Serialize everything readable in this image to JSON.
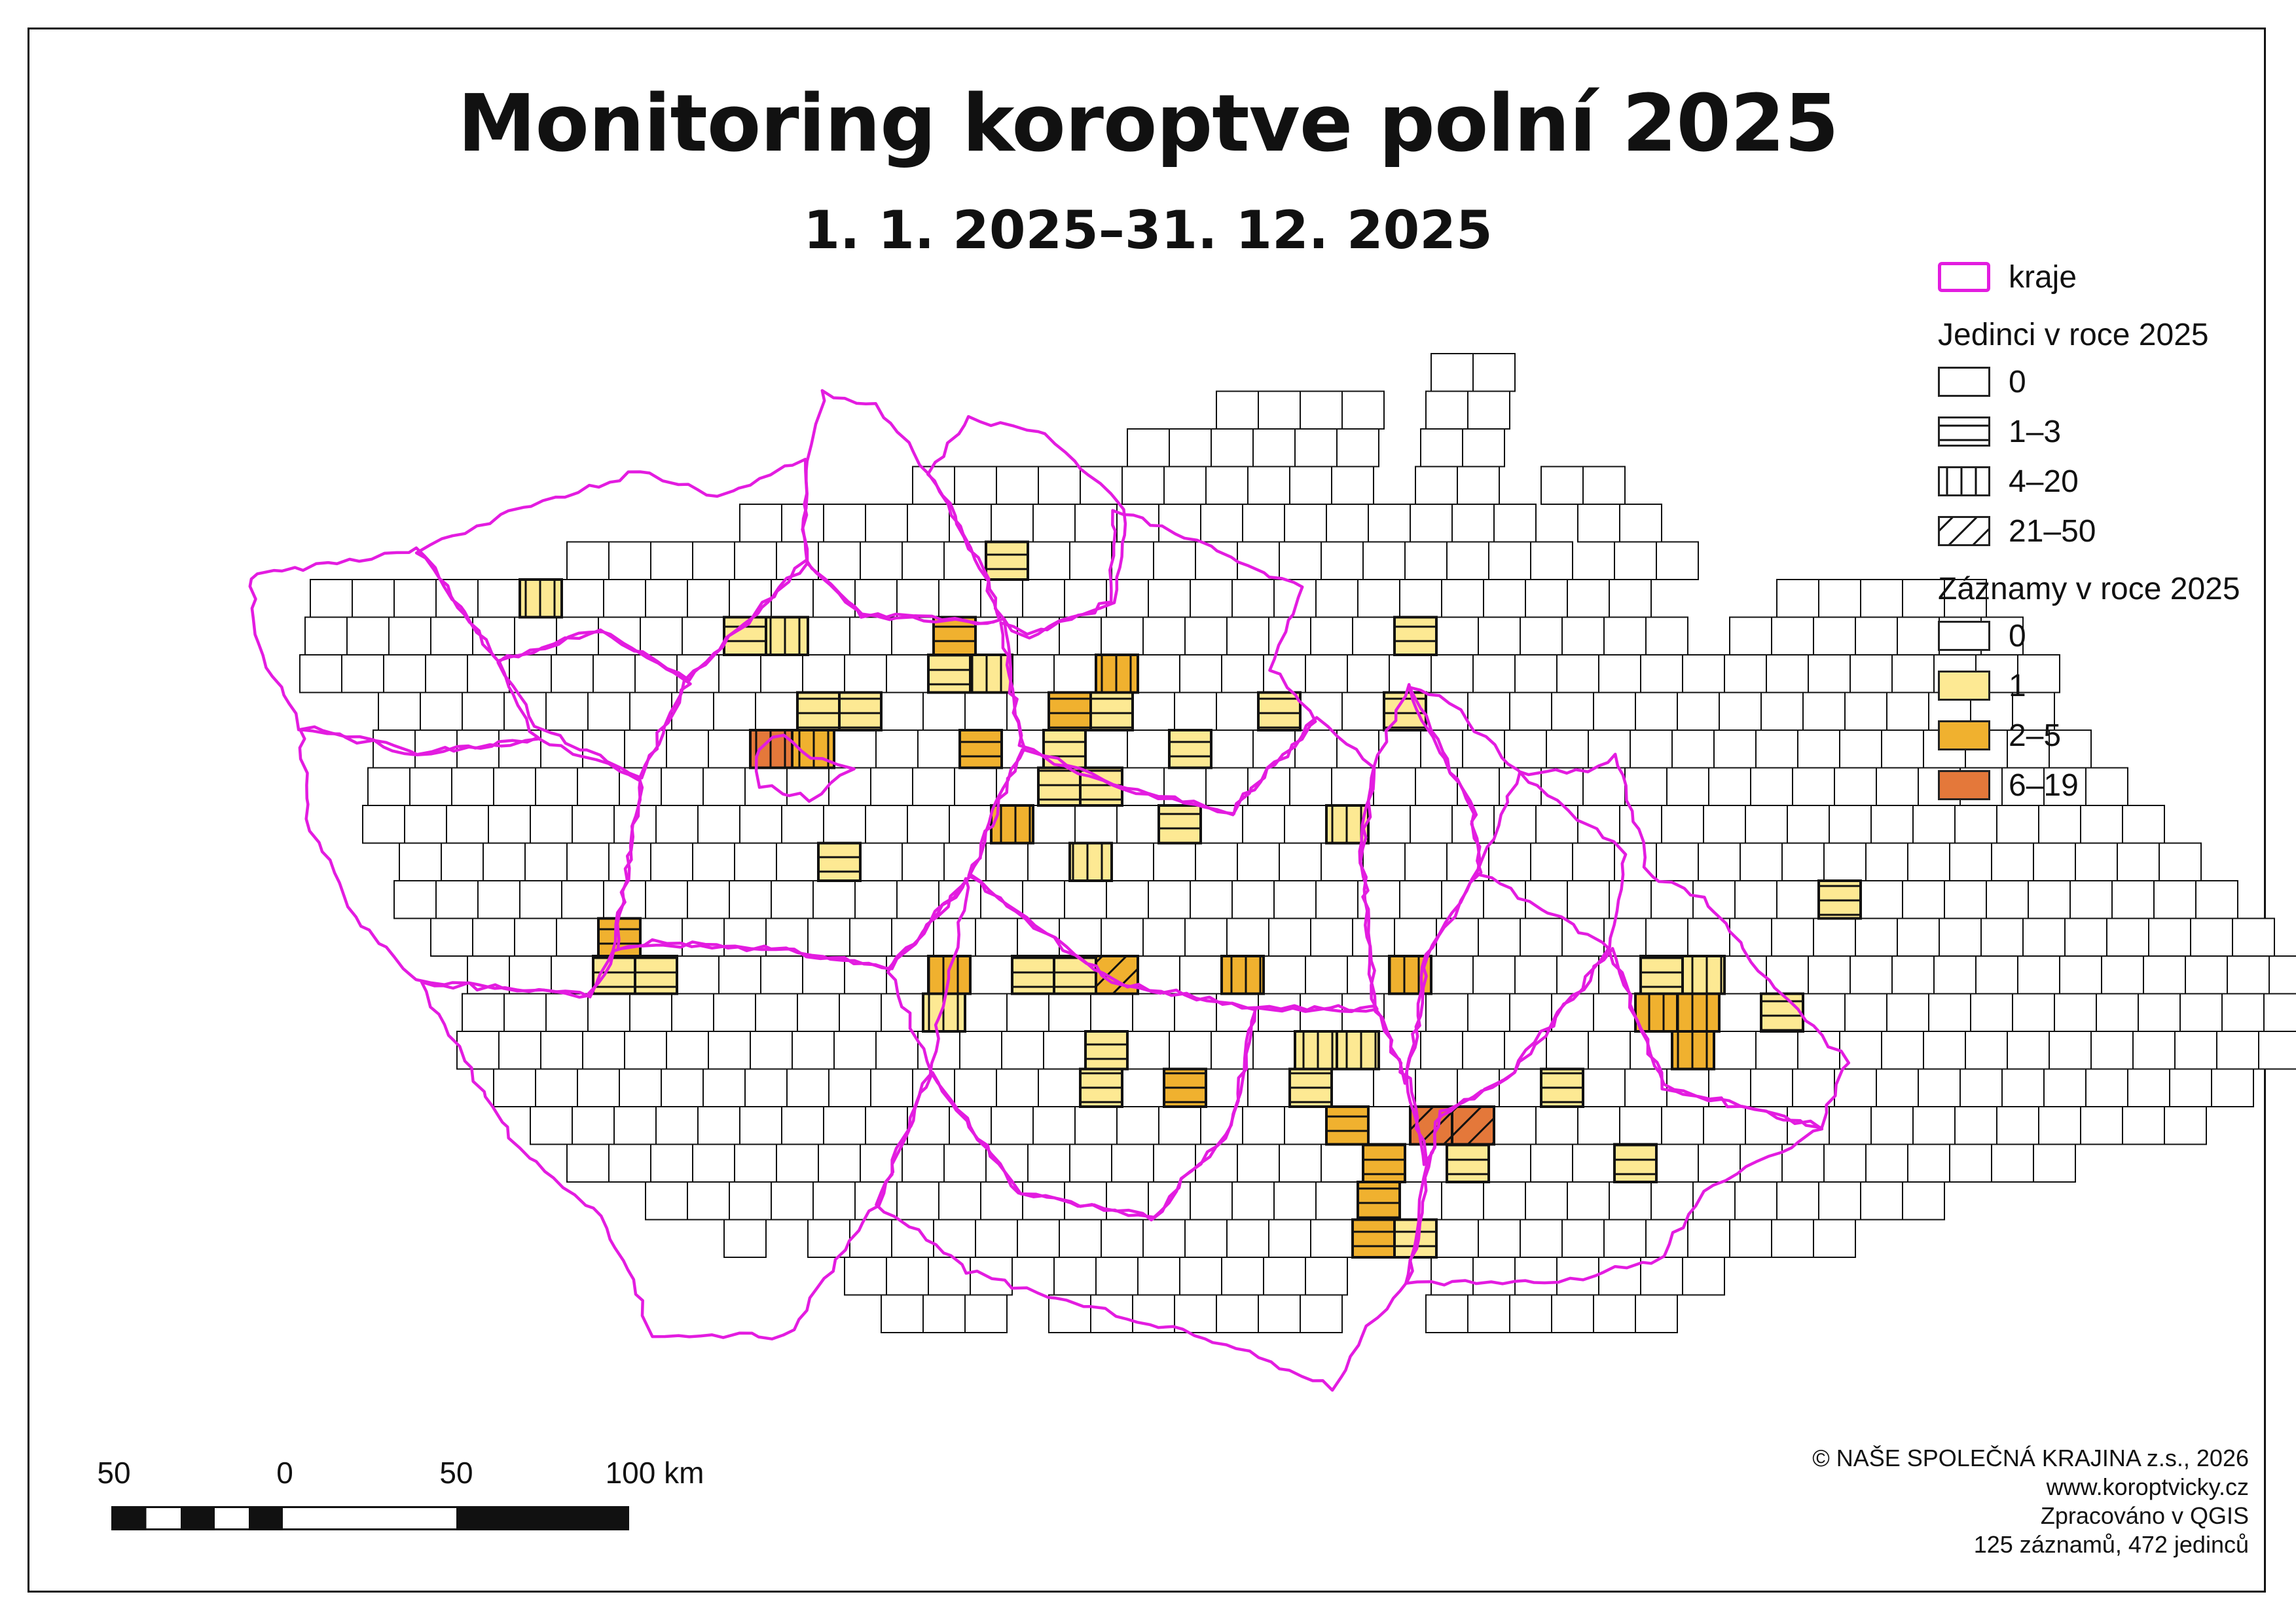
{
  "title": "Monitoring koroptve polní 2025",
  "subtitle": "1. 1. 2025–31. 12. 2025",
  "colors": {
    "kraje_border": "#e31ce0",
    "records_0": "#ffffff",
    "records_1": "#fde993",
    "records_2_5": "#f0b12f",
    "records_6_19": "#e4783a",
    "grid": "#111111"
  },
  "legend": {
    "kraje": "kraje",
    "individuals_title": "Jedinci v roce 2025",
    "individuals": [
      {
        "label": "0",
        "pattern": "none"
      },
      {
        "label": "1–3",
        "pattern": "horizontal"
      },
      {
        "label": "4–20",
        "pattern": "vertical"
      },
      {
        "label": "21–50",
        "pattern": "diagonal"
      }
    ],
    "records_title": "Záznamy v roce 2025",
    "records": [
      {
        "label": "0",
        "color": "#ffffff"
      },
      {
        "label": "1",
        "color": "#fde993"
      },
      {
        "label": "2–5",
        "color": "#f0b12f"
      },
      {
        "label": "6–19",
        "color": "#e4783a"
      }
    ]
  },
  "scalebar": {
    "labels": [
      "50",
      "0",
      "50",
      "100 km"
    ]
  },
  "credits": {
    "line1": "© NAŠE SPOLEČNÁ KRAJINA z.s., 2026",
    "line2": "www.koroptvicky.cz",
    "line3": "Zpracováno v QGIS",
    "line4": "125 záznamů, 472 jedinců"
  },
  "observed_cells": [
    {
      "col": 8,
      "row": 6,
      "records": "1",
      "individuals": "4–20"
    },
    {
      "col": 13,
      "row": 7,
      "records": "1",
      "individuals": "1–3"
    },
    {
      "col": 14,
      "row": 7,
      "records": "1",
      "individuals": "4–20"
    },
    {
      "col": 19,
      "row": 5,
      "records": "1",
      "individuals": "1–3"
    },
    {
      "col": 18,
      "row": 7,
      "records": "2–5",
      "individuals": "1–3"
    },
    {
      "col": 18,
      "row": 8,
      "records": "1",
      "individuals": "1–3"
    },
    {
      "col": 19,
      "row": 8,
      "records": "1",
      "individuals": "4–20"
    },
    {
      "col": 16,
      "row": 9,
      "records": "1",
      "individuals": "1–3"
    },
    {
      "col": 15,
      "row": 9,
      "records": "1",
      "individuals": "1–3"
    },
    {
      "col": 14,
      "row": 10,
      "records": "6–19",
      "individuals": "4–20"
    },
    {
      "col": 15,
      "row": 10,
      "records": "2–5",
      "individuals": "4–20"
    },
    {
      "col": 19,
      "row": 10,
      "records": "2–5",
      "individuals": "1–3"
    },
    {
      "col": 21,
      "row": 9,
      "records": "2–5",
      "individuals": "1–3"
    },
    {
      "col": 21,
      "row": 10,
      "records": "1",
      "individuals": "1–3"
    },
    {
      "col": 22,
      "row": 8,
      "records": "2–5",
      "individuals": "4–20"
    },
    {
      "col": 22,
      "row": 9,
      "records": "1",
      "individuals": "1–3"
    },
    {
      "col": 21,
      "row": 11,
      "records": "1",
      "individuals": "1–3"
    },
    {
      "col": 22,
      "row": 11,
      "records": "1",
      "individuals": "1–3"
    },
    {
      "col": 24,
      "row": 10,
      "records": "1",
      "individuals": "1–3"
    },
    {
      "col": 24,
      "row": 12,
      "records": "1",
      "individuals": "1–3"
    },
    {
      "col": 26,
      "row": 9,
      "records": "1",
      "individuals": "1–3"
    },
    {
      "col": 29,
      "row": 7,
      "records": "1",
      "individuals": "1–3"
    },
    {
      "col": 29,
      "row": 9,
      "records": "1",
      "individuals": "1–3"
    },
    {
      "col": 28,
      "row": 12,
      "records": "1",
      "individuals": "4–20"
    },
    {
      "col": 20,
      "row": 12,
      "records": "2–5",
      "individuals": "4–20"
    },
    {
      "col": 22,
      "row": 13,
      "records": "1",
      "individuals": "4–20"
    },
    {
      "col": 16,
      "row": 13,
      "records": "1",
      "individuals": "1–3"
    },
    {
      "col": 11,
      "row": 15,
      "records": "2–5",
      "individuals": "1–3"
    },
    {
      "col": 11,
      "row": 16,
      "records": "1",
      "individuals": "1–3"
    },
    {
      "col": 12,
      "row": 16,
      "records": "1",
      "individuals": "1–3"
    },
    {
      "col": 19,
      "row": 16,
      "records": "2–5",
      "individuals": "4–20"
    },
    {
      "col": 19,
      "row": 17,
      "records": "1",
      "individuals": "4–20"
    },
    {
      "col": 21,
      "row": 16,
      "records": "1",
      "individuals": "1–3"
    },
    {
      "col": 22,
      "row": 16,
      "records": "1",
      "individuals": "1–3"
    },
    {
      "col": 23,
      "row": 16,
      "records": "2–5",
      "individuals": "21–50"
    },
    {
      "col": 26,
      "row": 16,
      "records": "2–5",
      "individuals": "4–20"
    },
    {
      "col": 30,
      "row": 16,
      "records": "2–5",
      "individuals": "4–20"
    },
    {
      "col": 28,
      "row": 18,
      "records": "1",
      "individuals": "4–20"
    },
    {
      "col": 29,
      "row": 18,
      "records": "1",
      "individuals": "4–20"
    },
    {
      "col": 23,
      "row": 18,
      "records": "1",
      "individuals": "1–3"
    },
    {
      "col": 23,
      "row": 19,
      "records": "1",
      "individuals": "1–3"
    },
    {
      "col": 25,
      "row": 19,
      "records": "2–5",
      "individuals": "1–3"
    },
    {
      "col": 28,
      "row": 19,
      "records": "1",
      "individuals": "1–3"
    },
    {
      "col": 29,
      "row": 20,
      "records": "2–5",
      "individuals": "1–3"
    },
    {
      "col": 31,
      "row": 20,
      "records": "6–19",
      "individuals": "21–50"
    },
    {
      "col": 32,
      "row": 20,
      "records": "6–19",
      "individuals": "21–50"
    },
    {
      "col": 30,
      "row": 21,
      "records": "2–5",
      "individuals": "1–3"
    },
    {
      "col": 32,
      "row": 21,
      "records": "1",
      "individuals": "1–3"
    },
    {
      "col": 30,
      "row": 22,
      "records": "2–5",
      "individuals": "1–3"
    },
    {
      "col": 30,
      "row": 23,
      "records": "2–5",
      "individuals": "1–3"
    },
    {
      "col": 31,
      "row": 23,
      "records": "1",
      "individuals": "1–3"
    },
    {
      "col": 34,
      "row": 19,
      "records": "1",
      "individuals": "1–3"
    },
    {
      "col": 36,
      "row": 21,
      "records": "1",
      "individuals": "1–3"
    },
    {
      "col": 36,
      "row": 16,
      "records": "1",
      "individuals": "1–3"
    },
    {
      "col": 37,
      "row": 16,
      "records": "1",
      "individuals": "4–20"
    },
    {
      "col": 36,
      "row": 17,
      "records": "2–5",
      "individuals": "4–20"
    },
    {
      "col": 37,
      "row": 17,
      "records": "2–5",
      "individuals": "4–20"
    },
    {
      "col": 37,
      "row": 18,
      "records": "2–5",
      "individuals": "4–20"
    },
    {
      "col": 39,
      "row": 17,
      "records": "1",
      "individuals": "1–3"
    },
    {
      "col": 40,
      "row": 14,
      "records": "1",
      "individuals": "1–3"
    }
  ]
}
